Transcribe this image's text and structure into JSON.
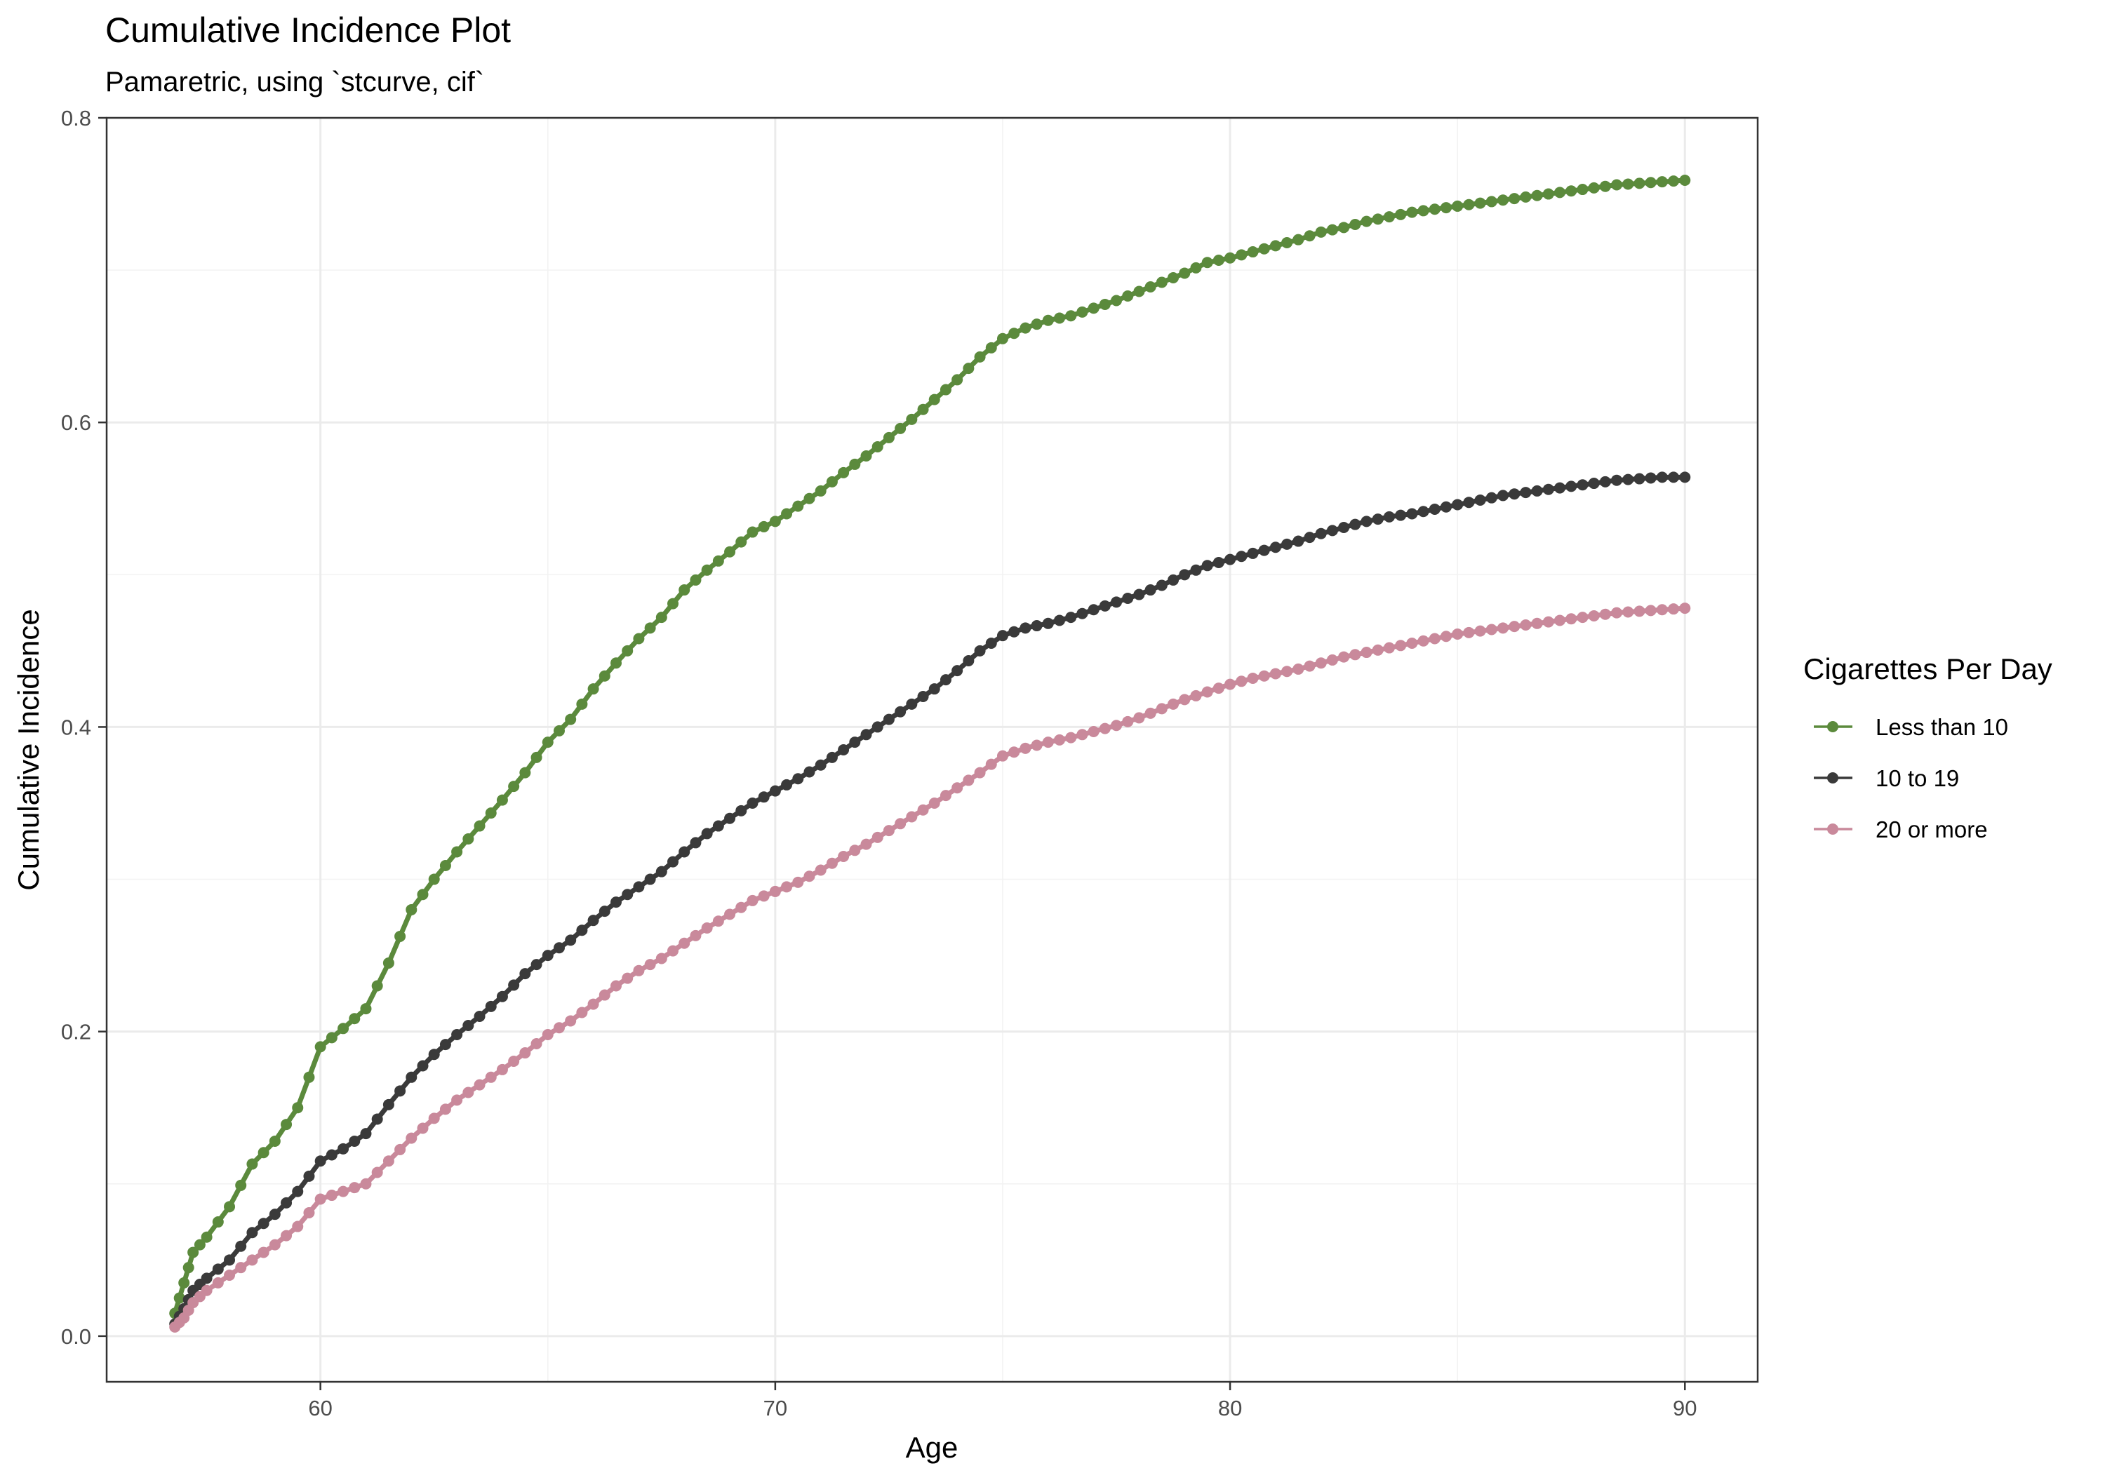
{
  "chart_data": {
    "type": "line",
    "title": "Cumulative Incidence Plot",
    "subtitle": "Pamaretric, using `stcurve, cif`",
    "xlabel": "Age",
    "ylabel": "Cumulative Incidence",
    "xlim": [
      55.3,
      91.6
    ],
    "ylim": [
      -0.03,
      0.8
    ],
    "x_ticks": [
      60,
      70,
      80,
      90
    ],
    "y_ticks": [
      0.0,
      0.2,
      0.4,
      0.6,
      0.8
    ],
    "x_tick_labels": [
      "60",
      "70",
      "80",
      "90"
    ],
    "y_tick_labels": [
      "0.0",
      "0.2",
      "0.4",
      "0.6",
      "0.8"
    ],
    "grid": true,
    "legend": {
      "title": "Cigarettes Per Day",
      "position": "right"
    },
    "series": [
      {
        "name": "Less than 10",
        "color": "#5b8a3c",
        "x": [
          56.8,
          57.0,
          57.2,
          57.5,
          58.0,
          58.5,
          59.0,
          59.5,
          60.0,
          60.5,
          61.0,
          61.5,
          62.0,
          62.5,
          63.0,
          63.5,
          64.0,
          64.5,
          65.0,
          65.5,
          66.0,
          66.5,
          67.0,
          67.5,
          68.0,
          68.5,
          69.0,
          69.5,
          70.0,
          70.5,
          71.0,
          71.5,
          72.0,
          72.5,
          73.0,
          73.5,
          74.0,
          74.5,
          75.0,
          75.5,
          76.0,
          76.5,
          77.0,
          77.5,
          78.0,
          78.5,
          79.0,
          79.5,
          80.0,
          80.5,
          81.0,
          81.5,
          82.0,
          82.5,
          83.0,
          83.5,
          84.0,
          84.5,
          85.0,
          85.5,
          86.0,
          86.5,
          87.0,
          87.5,
          88.0,
          88.5,
          89.0,
          89.5,
          90.0
        ],
        "y": [
          0.015,
          0.035,
          0.055,
          0.065,
          0.085,
          0.113,
          0.128,
          0.15,
          0.19,
          0.202,
          0.215,
          0.245,
          0.28,
          0.3,
          0.318,
          0.335,
          0.352,
          0.37,
          0.39,
          0.405,
          0.425,
          0.442,
          0.458,
          0.472,
          0.49,
          0.503,
          0.515,
          0.528,
          0.535,
          0.545,
          0.555,
          0.567,
          0.578,
          0.59,
          0.602,
          0.615,
          0.628,
          0.643,
          0.655,
          0.662,
          0.667,
          0.67,
          0.675,
          0.68,
          0.686,
          0.692,
          0.698,
          0.705,
          0.708,
          0.712,
          0.716,
          0.72,
          0.725,
          0.728,
          0.732,
          0.735,
          0.738,
          0.74,
          0.742,
          0.744,
          0.746,
          0.748,
          0.75,
          0.752,
          0.754,
          0.756,
          0.757,
          0.758,
          0.759
        ]
      },
      {
        "name": "10 to 19",
        "color": "#3a3a3a",
        "x": [
          56.8,
          57.0,
          57.2,
          57.5,
          58.0,
          58.5,
          59.0,
          59.5,
          60.0,
          60.5,
          61.0,
          61.5,
          62.0,
          62.5,
          63.0,
          63.5,
          64.0,
          64.5,
          65.0,
          65.5,
          66.0,
          66.5,
          67.0,
          67.5,
          68.0,
          68.5,
          69.0,
          69.5,
          70.0,
          70.5,
          71.0,
          71.5,
          72.0,
          72.5,
          73.0,
          73.5,
          74.0,
          74.5,
          75.0,
          75.5,
          76.0,
          76.5,
          77.0,
          77.5,
          78.0,
          78.5,
          79.0,
          79.5,
          80.0,
          80.5,
          81.0,
          81.5,
          82.0,
          82.5,
          83.0,
          83.5,
          84.0,
          84.5,
          85.0,
          85.5,
          86.0,
          86.5,
          87.0,
          87.5,
          88.0,
          88.5,
          89.0,
          89.5,
          90.0
        ],
        "y": [
          0.008,
          0.018,
          0.03,
          0.038,
          0.05,
          0.068,
          0.08,
          0.095,
          0.115,
          0.123,
          0.133,
          0.152,
          0.17,
          0.185,
          0.198,
          0.21,
          0.223,
          0.238,
          0.25,
          0.26,
          0.273,
          0.285,
          0.295,
          0.305,
          0.318,
          0.33,
          0.34,
          0.35,
          0.358,
          0.366,
          0.375,
          0.385,
          0.395,
          0.405,
          0.415,
          0.425,
          0.437,
          0.45,
          0.46,
          0.465,
          0.468,
          0.472,
          0.477,
          0.482,
          0.487,
          0.493,
          0.5,
          0.506,
          0.51,
          0.514,
          0.518,
          0.522,
          0.527,
          0.531,
          0.535,
          0.538,
          0.54,
          0.543,
          0.546,
          0.549,
          0.552,
          0.554,
          0.556,
          0.558,
          0.56,
          0.562,
          0.563,
          0.564,
          0.564
        ]
      },
      {
        "name": "20 or more",
        "color": "#c9899b",
        "x": [
          56.8,
          57.0,
          57.2,
          57.5,
          58.0,
          58.5,
          59.0,
          59.5,
          60.0,
          60.5,
          61.0,
          61.5,
          62.0,
          62.5,
          63.0,
          63.5,
          64.0,
          64.5,
          65.0,
          65.5,
          66.0,
          66.5,
          67.0,
          67.5,
          68.0,
          68.5,
          69.0,
          69.5,
          70.0,
          70.5,
          71.0,
          71.5,
          72.0,
          72.5,
          73.0,
          73.5,
          74.0,
          74.5,
          75.0,
          75.5,
          76.0,
          76.5,
          77.0,
          77.5,
          78.0,
          78.5,
          79.0,
          79.5,
          80.0,
          80.5,
          81.0,
          81.5,
          82.0,
          82.5,
          83.0,
          83.5,
          84.0,
          84.5,
          85.0,
          85.5,
          86.0,
          86.5,
          87.0,
          87.5,
          88.0,
          88.5,
          89.0,
          89.5,
          90.0
        ],
        "y": [
          0.006,
          0.012,
          0.022,
          0.03,
          0.04,
          0.05,
          0.06,
          0.072,
          0.09,
          0.095,
          0.1,
          0.115,
          0.13,
          0.143,
          0.155,
          0.165,
          0.175,
          0.186,
          0.198,
          0.207,
          0.218,
          0.23,
          0.24,
          0.248,
          0.258,
          0.268,
          0.277,
          0.286,
          0.292,
          0.298,
          0.306,
          0.315,
          0.323,
          0.332,
          0.341,
          0.35,
          0.36,
          0.37,
          0.381,
          0.386,
          0.39,
          0.393,
          0.397,
          0.401,
          0.406,
          0.412,
          0.418,
          0.423,
          0.428,
          0.432,
          0.435,
          0.438,
          0.442,
          0.446,
          0.449,
          0.452,
          0.455,
          0.458,
          0.461,
          0.463,
          0.465,
          0.467,
          0.469,
          0.471,
          0.473,
          0.475,
          0.476,
          0.477,
          0.478
        ]
      }
    ]
  }
}
